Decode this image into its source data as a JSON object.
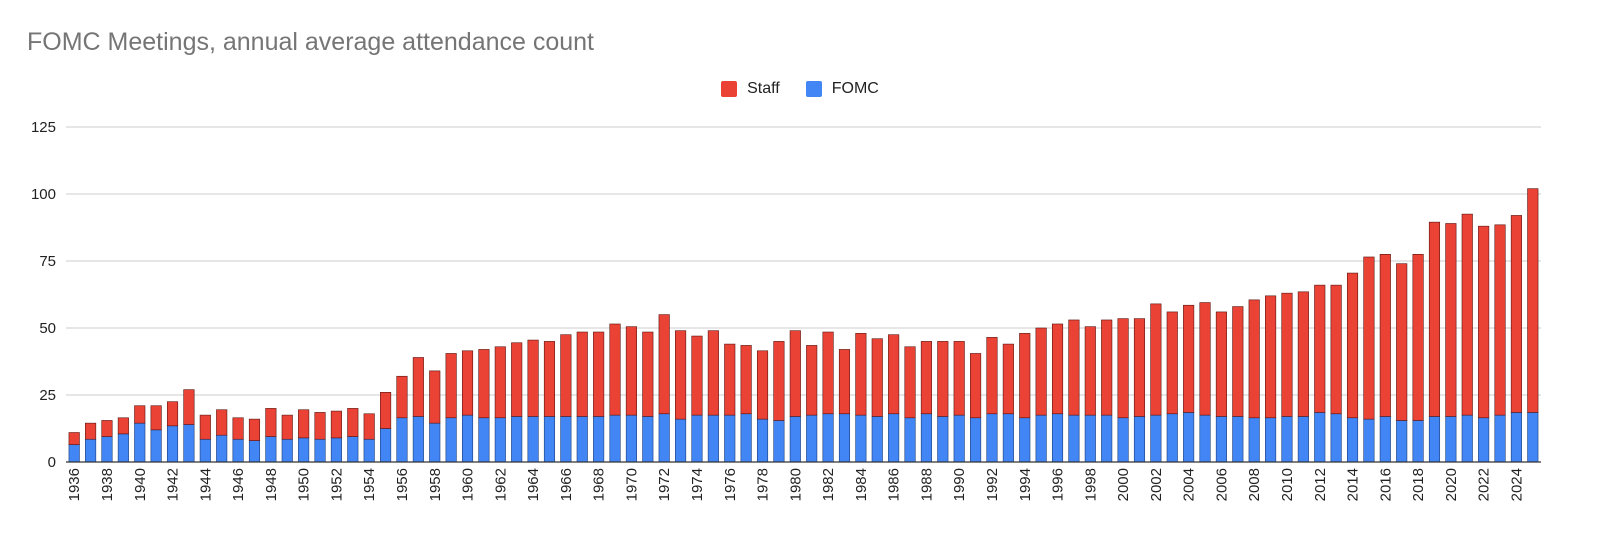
{
  "chart_data": {
    "type": "bar",
    "stacked": true,
    "title": "FOMC Meetings, annual average attendance count",
    "xlabel": "",
    "ylabel": "",
    "ylim": [
      0,
      125
    ],
    "yticks": [
      0,
      25,
      50,
      75,
      100,
      125
    ],
    "grid": true,
    "legend_position": "top-center",
    "categories": [
      1936,
      1937,
      1938,
      1939,
      1940,
      1941,
      1942,
      1943,
      1944,
      1945,
      1946,
      1947,
      1948,
      1949,
      1950,
      1951,
      1952,
      1953,
      1954,
      1955,
      1956,
      1957,
      1958,
      1959,
      1960,
      1961,
      1962,
      1963,
      1964,
      1965,
      1966,
      1967,
      1968,
      1969,
      1970,
      1971,
      1972,
      1973,
      1974,
      1975,
      1976,
      1977,
      1978,
      1979,
      1980,
      1981,
      1982,
      1983,
      1984,
      1985,
      1986,
      1987,
      1988,
      1989,
      1990,
      1991,
      1992,
      1993,
      1994,
      1995,
      1996,
      1997,
      1998,
      1999,
      2000,
      2001,
      2002,
      2003,
      2004,
      2005,
      2006,
      2007,
      2008,
      2009,
      2010,
      2011,
      2012,
      2013,
      2014,
      2015,
      2016,
      2017,
      2018,
      2019,
      2020,
      2021,
      2022,
      2023,
      2024,
      2025
    ],
    "tick_labels": [
      "1936",
      "1938",
      "1940",
      "1942",
      "1944",
      "1946",
      "1948",
      "1950",
      "1952",
      "1954",
      "1956",
      "1958",
      "1960",
      "1962",
      "1964",
      "1966",
      "1968",
      "1970",
      "1972",
      "1974",
      "1976",
      "1978",
      "1980",
      "1982",
      "1984",
      "1986",
      "1988",
      "1990",
      "1992",
      "1994",
      "1996",
      "1998",
      "2000",
      "2002",
      "2004",
      "2006",
      "2008",
      "2010",
      "2012",
      "2014",
      "2016",
      "2018",
      "2020",
      "2022",
      "2024"
    ],
    "series": [
      {
        "name": "FOMC",
        "color": "#4285f4",
        "values": [
          6.5,
          8.5,
          9.5,
          10.5,
          14.5,
          12,
          13.5,
          14,
          8.5,
          10,
          8.5,
          8,
          9.5,
          8.5,
          9,
          8.5,
          9,
          9.5,
          8.5,
          12.5,
          16.5,
          17,
          14.5,
          16.5,
          17.5,
          16.5,
          16.5,
          17,
          17,
          17,
          17,
          17,
          17,
          17.5,
          17.5,
          17,
          18,
          16,
          17.5,
          17.5,
          17.5,
          18,
          16,
          15.5,
          17,
          17.5,
          18,
          18,
          17.5,
          17,
          18,
          16.5,
          18,
          17,
          17.5,
          16.5,
          18,
          18,
          16.5,
          17.5,
          18,
          17.5,
          17.5,
          17.5,
          16.5,
          17,
          17.5,
          18,
          18.5,
          17.5,
          17,
          17,
          16.5,
          16.5,
          17,
          17,
          18.5,
          18,
          16.5,
          16,
          17,
          15.5,
          15.5,
          17,
          17,
          17.5,
          16.5,
          17.5,
          18.5,
          18.5
        ]
      },
      {
        "name": "Staff",
        "color": "#ea4335",
        "values": [
          4.5,
          6,
          6,
          6,
          6.5,
          9,
          9,
          13,
          9,
          9.5,
          8,
          8,
          10.5,
          9,
          10.5,
          10,
          10,
          10.5,
          9.5,
          13.5,
          15.5,
          22,
          19.5,
          24,
          24,
          25.5,
          26.5,
          27.5,
          28.5,
          28,
          30.5,
          31.5,
          31.5,
          34,
          33,
          31.5,
          37,
          33,
          29.5,
          31.5,
          26.5,
          25.5,
          25.5,
          29.5,
          32,
          26,
          30.5,
          24,
          30.5,
          29,
          29.5,
          26.5,
          27,
          28,
          27.5,
          24,
          28.5,
          26,
          31.5,
          32.5,
          33.5,
          35.5,
          33,
          35.5,
          37,
          36.5,
          41.5,
          38,
          40,
          42,
          39,
          41,
          44,
          45.5,
          46,
          46.5,
          47.5,
          48,
          54,
          60.5,
          60.5,
          58.5,
          62,
          72.5,
          72,
          75,
          71.5,
          71,
          73.5,
          83.5
        ]
      }
    ]
  }
}
